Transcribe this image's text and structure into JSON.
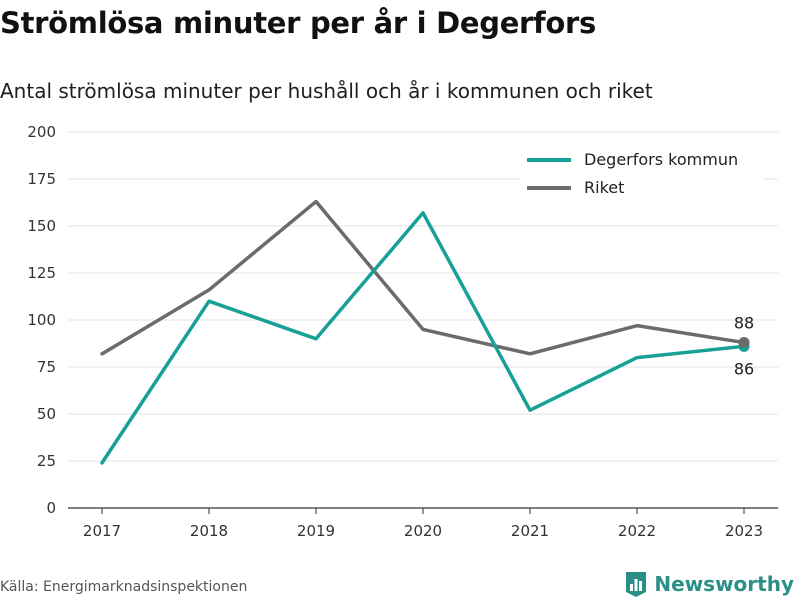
{
  "title": "Strömlösa minuter per år i Degerfors",
  "subtitle": "Antal strömlösa minuter per hushåll och år i kommunen och riket",
  "source": "Källa: Energimarknadsinspektionen",
  "brand": {
    "name": "Newsworthy",
    "logo_icon": "bar-chart-icon",
    "color": "#2a8f86"
  },
  "chart_data": {
    "type": "line",
    "x": [
      2017,
      2018,
      2019,
      2020,
      2021,
      2022,
      2023
    ],
    "ylim": [
      0,
      200
    ],
    "yticks": [
      0,
      25,
      50,
      75,
      100,
      125,
      150,
      175,
      200
    ],
    "grid": "horizontal",
    "legend_position": "top-right",
    "series": [
      {
        "name": "Degerfors kommun",
        "color": "#16a096",
        "values": [
          24,
          110,
          90,
          157,
          52,
          80,
          86
        ],
        "end_label": "86"
      },
      {
        "name": "Riket",
        "color": "#6b6b6b",
        "values": [
          82,
          116,
          163,
          95,
          82,
          97,
          88
        ],
        "end_label": "88"
      }
    ]
  }
}
